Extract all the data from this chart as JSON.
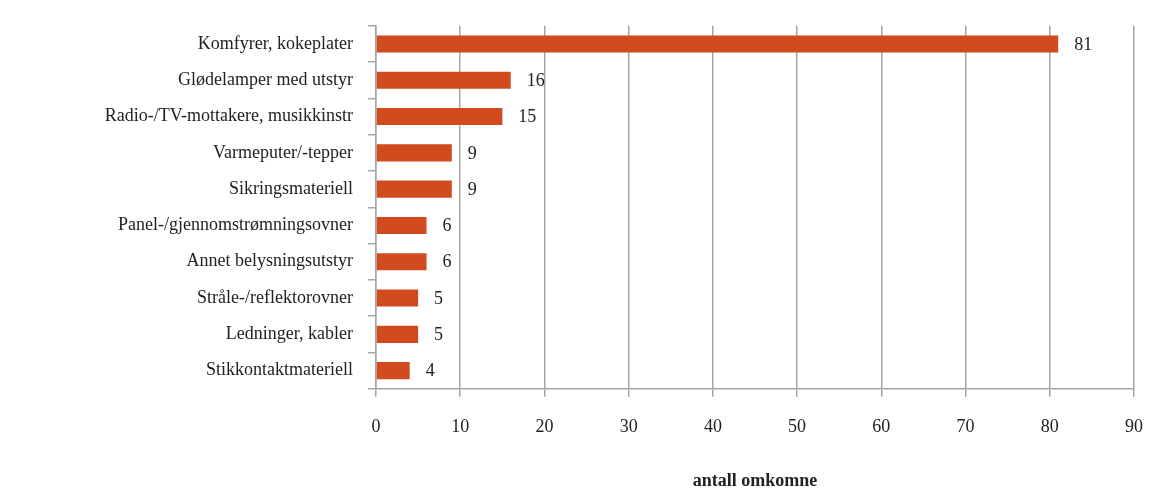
{
  "chart_data": {
    "type": "bar",
    "orientation": "horizontal",
    "categories": [
      "Komfyrer, kokeplater",
      "Glødelamper med utstyr",
      "Radio-/TV-mottakere, musikkinstr",
      "Varmeputer/-tepper",
      "Sikringsmateriell",
      "Panel-/gjennomstrømningsovner",
      "Annet belysningsutstyr",
      "Stråle-/reflektorovner",
      "Ledninger, kabler",
      "Stikkontaktmateriell"
    ],
    "values": [
      81,
      16,
      15,
      9,
      9,
      6,
      6,
      5,
      5,
      4
    ],
    "color": "#d24b1e",
    "xlim": [
      0,
      90
    ],
    "xticks": [
      0,
      10,
      20,
      30,
      40,
      50,
      60,
      70,
      80,
      90
    ],
    "xlabel": "antall omkomne",
    "grid": "x",
    "data_labels": true
  }
}
